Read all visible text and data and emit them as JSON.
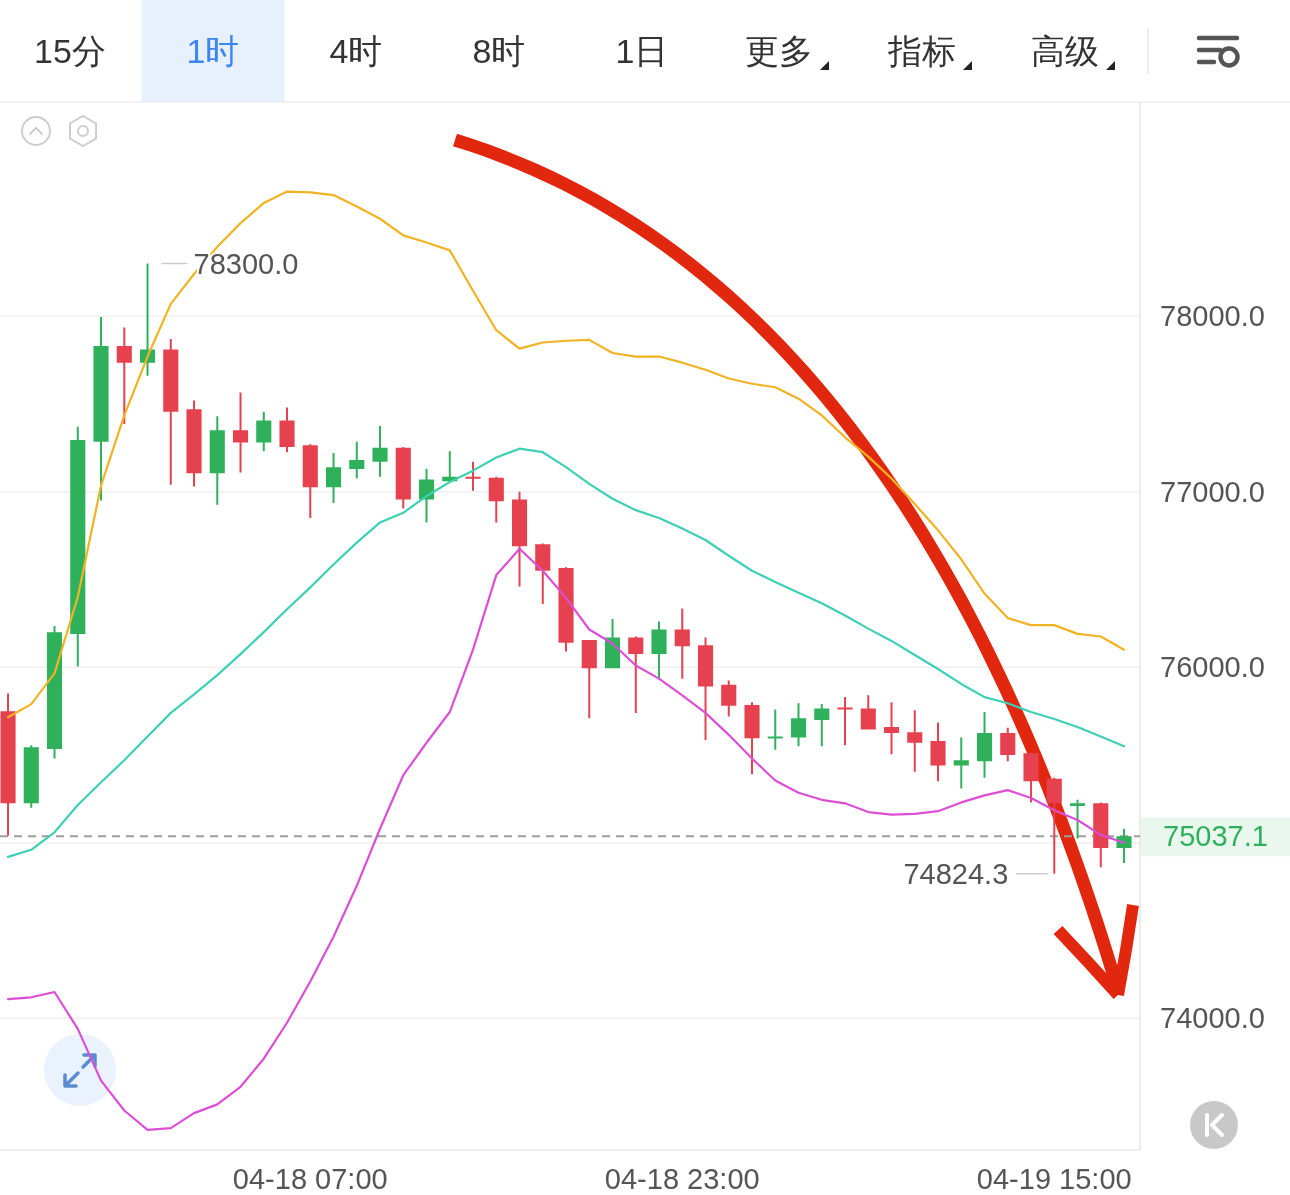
{
  "chart_data": [
    {
      "type": "other",
      "categories": [
        "15分",
        "1时",
        "4时",
        "8时",
        "1日",
        "更多",
        "指标",
        "高级"
      ],
      "colors": [
        "#333333",
        "#3b86f0",
        "#333333",
        "#333333",
        "#333333",
        "#333333",
        "#333333",
        "#333333"
      ]
    },
    {
      "type": "candlestick",
      "categories": [
        null,
        null,
        null,
        null,
        null,
        null,
        null,
        null,
        null,
        null,
        null,
        null,
        null,
        "04-18 07:00",
        null,
        null,
        null,
        null,
        null,
        null,
        null,
        null,
        null,
        null,
        null,
        null,
        null,
        null,
        null,
        "04-18 23:00",
        null,
        null,
        null,
        null,
        null,
        null,
        null,
        null,
        null,
        null,
        null,
        null,
        null,
        null,
        null,
        "04-19 15:00",
        null,
        null,
        null
      ],
      "ohlc": [
        [
          75750,
          75850,
          75040,
          75225
        ],
        [
          75225,
          75555,
          75200,
          75545
        ],
        [
          75535,
          76235,
          75480,
          76200
        ],
        [
          76190,
          77370,
          76005,
          77295
        ],
        [
          77285,
          77995,
          76950,
          77830
        ],
        [
          77830,
          77935,
          77385,
          77735
        ],
        [
          77735,
          78300,
          77660,
          77810
        ],
        [
          77810,
          77870,
          77040,
          77455
        ],
        [
          77470,
          77520,
          77030,
          77105
        ],
        [
          77105,
          77430,
          76925,
          77350
        ],
        [
          77350,
          77565,
          77110,
          77280
        ],
        [
          77280,
          77455,
          77230,
          77405
        ],
        [
          77405,
          77480,
          77225,
          77255
        ],
        [
          77265,
          77270,
          76850,
          77025
        ],
        [
          77025,
          77220,
          76935,
          77140
        ],
        [
          77130,
          77285,
          77075,
          77180
        ],
        [
          77170,
          77375,
          77085,
          77250
        ],
        [
          77250,
          77255,
          76905,
          76955
        ],
        [
          76955,
          77130,
          76825,
          77070
        ],
        [
          77060,
          77230,
          77055,
          77085
        ],
        [
          77085,
          77170,
          77005,
          77075
        ],
        [
          77080,
          77085,
          76825,
          76945
        ],
        [
          76955,
          77000,
          76460,
          76690
        ],
        [
          76700,
          76705,
          76360,
          76550
        ],
        [
          76565,
          76570,
          76090,
          76140
        ],
        [
          76155,
          76155,
          75710,
          75995
        ],
        [
          75995,
          76275,
          75995,
          76170
        ],
        [
          76170,
          76175,
          75740,
          76075
        ],
        [
          76075,
          76260,
          75930,
          76215
        ],
        [
          76215,
          76335,
          75935,
          76120
        ],
        [
          76125,
          76170,
          75585,
          75890
        ],
        [
          75900,
          75925,
          75720,
          75780
        ],
        [
          75785,
          75800,
          75390,
          75595
        ],
        [
          75595,
          75760,
          75530,
          75605
        ],
        [
          75600,
          75795,
          75550,
          75710
        ],
        [
          75700,
          75790,
          75550,
          75765
        ],
        [
          75770,
          75830,
          75555,
          75760
        ],
        [
          75765,
          75840,
          75645,
          75645
        ],
        [
          75660,
          75800,
          75505,
          75625
        ],
        [
          75630,
          75755,
          75405,
          75570
        ],
        [
          75580,
          75685,
          75350,
          75440
        ],
        [
          75440,
          75600,
          75310,
          75470
        ],
        [
          75465,
          75745,
          75370,
          75625
        ],
        [
          75625,
          75655,
          75465,
          75500
        ],
        [
          75510,
          75515,
          75230,
          75350
        ],
        [
          75365,
          75370,
          74824.3,
          75225
        ],
        [
          75210,
          75245,
          75025,
          75225
        ],
        [
          75225,
          75230,
          74860,
          74970
        ],
        [
          74970,
          75080,
          74885,
          75037.1
        ]
      ],
      "colors": [
        "#e6414f",
        "#2fb15c",
        "#2fb15c",
        "#2fb15c",
        "#2fb15c",
        "#e6414f",
        "#2fb15c",
        "#e6414f",
        "#e6414f",
        "#2fb15c",
        "#e6414f",
        "#2fb15c",
        "#e6414f",
        "#e6414f",
        "#2fb15c",
        "#2fb15c",
        "#2fb15c",
        "#e6414f",
        "#2fb15c",
        "#2fb15c",
        "#e6414f",
        "#e6414f",
        "#e6414f",
        "#e6414f",
        "#e6414f",
        "#e6414f",
        "#2fb15c",
        "#e6414f",
        "#2fb15c",
        "#e6414f",
        "#e6414f",
        "#e6414f",
        "#e6414f",
        "#2fb15c",
        "#2fb15c",
        "#2fb15c",
        "#e6414f",
        "#e6414f",
        "#e6414f",
        "#e6414f",
        "#e6414f",
        "#2fb15c",
        "#2fb15c",
        "#e6414f",
        "#e6414f",
        "#e6414f",
        "#2fb15c",
        "#e6414f",
        "#2fb15c"
      ],
      "series": [
        {
          "type": "line",
          "color": "#efb324",
          "values": [
            75715,
            75790,
            75965,
            76400,
            77035,
            77435,
            77770,
            78070,
            78240,
            78395,
            78530,
            78645,
            78710,
            78705,
            78690,
            78625,
            78555,
            78460,
            78420,
            78375,
            78145,
            77920,
            77815,
            77850,
            77860,
            77865,
            77790,
            77770,
            77770,
            77735,
            77695,
            77645,
            77615,
            77595,
            77530,
            77435,
            77310,
            77200,
            77075,
            76930,
            76780,
            76615,
            76420,
            76280,
            76240,
            76240,
            76190,
            76175,
            76100
          ]
        },
        {
          "type": "line",
          "color": "#3fcfb4",
          "values": [
            74920,
            74960,
            75060,
            75215,
            75345,
            75470,
            75605,
            75740,
            75845,
            75955,
            76075,
            76200,
            76330,
            76455,
            76585,
            76710,
            76825,
            76880,
            76975,
            77055,
            77120,
            77195,
            77245,
            77225,
            77140,
            77045,
            76960,
            76895,
            76850,
            76790,
            76725,
            76635,
            76550,
            76485,
            76425,
            76365,
            76295,
            76220,
            76150,
            76070,
            75990,
            75905,
            75830,
            75795,
            75745,
            75705,
            75660,
            75605,
            75550
          ]
        },
        {
          "type": "line",
          "color": "#dc4fd4",
          "values": [
            74110,
            74120,
            74150,
            73940,
            73645,
            73475,
            73365,
            73375,
            73460,
            73510,
            73610,
            73770,
            73975,
            74210,
            74465,
            74755,
            75080,
            75385,
            75570,
            75745,
            76100,
            76525,
            76675,
            76550,
            76395,
            76215,
            76135,
            76010,
            75935,
            75840,
            75740,
            75615,
            75480,
            75355,
            75285,
            75245,
            75225,
            75175,
            75160,
            75165,
            75180,
            75230,
            75270,
            75300,
            75255,
            75185,
            75130,
            75045,
            75000
          ]
        }
      ],
      "ylim": [
        73250,
        79220
      ],
      "yticks": [
        {
          "value": 74000,
          "label": "74000.0"
        },
        {
          "value": 75000,
          "label": null
        },
        {
          "value": 76000,
          "label": "76000.0"
        },
        {
          "value": 77000,
          "label": "77000.0"
        },
        {
          "value": 78000,
          "label": "78000.0"
        }
      ],
      "grid": "y",
      "ref_lines": [
        {
          "axis": "y",
          "value": 75037.1,
          "label": "75037.1",
          "color": "#9e9e9e",
          "line_style": "dashed"
        }
      ],
      "annotations": [
        "78300.0",
        {
          "text": "74824.3",
          "x": "04-19 15:00",
          "y": 74824.3
        }
      ]
    }
  ]
}
